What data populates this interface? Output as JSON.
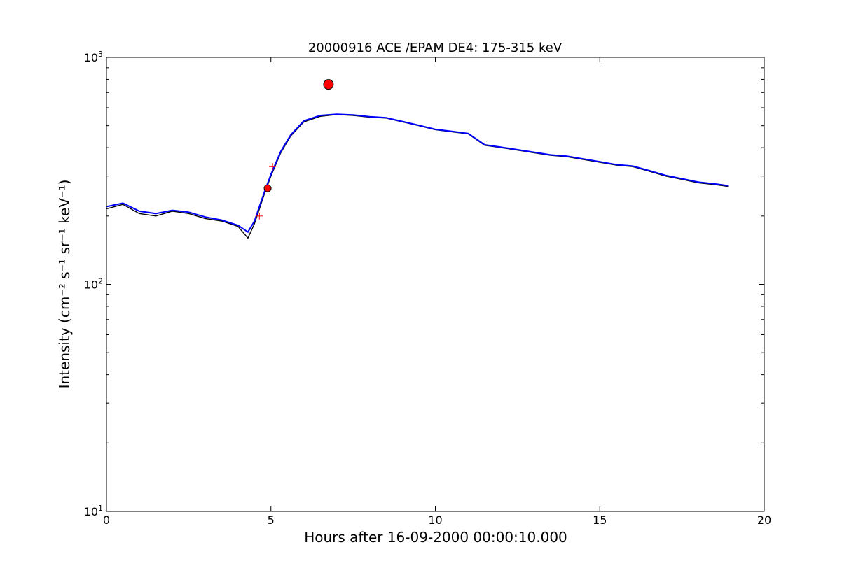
{
  "chart_data": {
    "type": "line",
    "title": "20000916 ACE /EPAM DE4: 175-315 keV",
    "xlabel": "Hours after 16-09-2000 00:00:10.000",
    "ylabel": "Intensity (cm⁻² s⁻¹ sr⁻¹ keV⁻¹)",
    "xlim": [
      0,
      20
    ],
    "ylim": [
      10,
      1000
    ],
    "yscale": "log",
    "grid": false,
    "x_ticks": [
      0,
      5,
      10,
      15,
      20
    ],
    "x_tick_labels": [
      "0",
      "5",
      "10",
      "15",
      "20"
    ],
    "y_ticks": [
      10,
      100,
      1000
    ],
    "y_tick_labels": [
      {
        "base": "10",
        "exp": "1"
      },
      {
        "base": "10",
        "exp": "2"
      },
      {
        "base": "10",
        "exp": "3"
      }
    ],
    "colors": {
      "raw": "#000000",
      "smoothed": "#0000ff",
      "markers": "#ff0000"
    },
    "series": [
      {
        "style": "black-line",
        "x": [
          0,
          0.5,
          1.0,
          1.5,
          2.0,
          2.5,
          3.0,
          3.5,
          4.0,
          4.3,
          4.5,
          4.8,
          5.0,
          5.3,
          5.6,
          6.0,
          6.5,
          7.0,
          7.5,
          8.0,
          8.5,
          9.0,
          9.5,
          10.0,
          10.5,
          11.0,
          11.5,
          12.0,
          12.5,
          13.0,
          13.5,
          14.0,
          14.5,
          15.0,
          15.5,
          16.0,
          16.5,
          17.0,
          17.5,
          18.0,
          18.5,
          18.9
        ],
        "y": [
          215,
          225,
          205,
          200,
          210,
          205,
          195,
          190,
          180,
          160,
          185,
          250,
          300,
          380,
          450,
          520,
          550,
          560,
          555,
          545,
          540,
          520,
          500,
          480,
          470,
          460,
          410,
          400,
          390,
          380,
          370,
          365,
          355,
          345,
          335,
          330,
          315,
          300,
          290,
          280,
          275,
          270
        ]
      },
      {
        "style": "blue-line",
        "x": [
          0,
          0.5,
          1.0,
          1.5,
          2.0,
          2.5,
          3.0,
          3.5,
          4.0,
          4.3,
          4.5,
          4.8,
          5.0,
          5.3,
          5.6,
          6.0,
          6.5,
          7.0,
          7.5,
          8.0,
          8.5,
          9.0,
          9.5,
          10.0,
          10.5,
          11.0,
          11.5,
          12.0,
          12.5,
          13.0,
          13.5,
          14.0,
          14.5,
          15.0,
          15.5,
          16.0,
          16.5,
          17.0,
          17.5,
          18.0,
          18.5,
          18.9
        ],
        "y": [
          220,
          228,
          210,
          205,
          212,
          208,
          198,
          192,
          182,
          170,
          190,
          255,
          305,
          385,
          455,
          525,
          555,
          562,
          558,
          548,
          542,
          522,
          502,
          482,
          472,
          462,
          412,
          402,
          392,
          382,
          372,
          367,
          357,
          347,
          337,
          332,
          317,
          302,
          292,
          282,
          277,
          272
        ]
      }
    ],
    "markers": [
      {
        "shape": "circle",
        "x": 6.75,
        "y": 760
      },
      {
        "shape": "circle",
        "x": 4.9,
        "y": 265
      },
      {
        "shape": "plus",
        "x": 5.05,
        "y": 330
      },
      {
        "shape": "plus",
        "x": 4.65,
        "y": 200
      }
    ]
  }
}
